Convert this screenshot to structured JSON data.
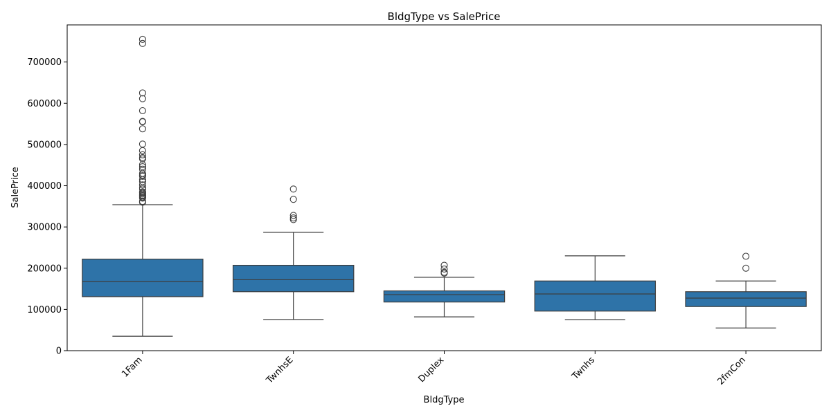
{
  "chart_data": {
    "type": "box",
    "title": "BldgType vs SalePrice",
    "xlabel": "BldgType",
    "ylabel": "SalePrice",
    "ylim": [
      0,
      790000
    ],
    "yticks": [
      0,
      100000,
      200000,
      300000,
      400000,
      500000,
      600000,
      700000
    ],
    "ytick_labels": [
      "0",
      "100000",
      "200000",
      "300000",
      "400000",
      "500000",
      "600000",
      "700000"
    ],
    "categories": [
      "1Fam",
      "TwnhsE",
      "Duplex",
      "Twnhs",
      "2fmCon"
    ],
    "grid": false,
    "box_color": "#2e73a8",
    "line_color": "#3d3d3d",
    "boxes": [
      {
        "category": "1Fam",
        "whisker_low": 35000,
        "q1": 131000,
        "median": 168000,
        "q3": 222000,
        "whisker_high": 354000,
        "outliers": [
          755000,
          745000,
          625000,
          611000,
          582000,
          556000,
          555000,
          538000,
          501000,
          485000,
          475000,
          468000,
          465000,
          451000,
          446000,
          440000,
          430000,
          426000,
          423000,
          415000,
          410000,
          402000,
          395000,
          392000,
          385000,
          383000,
          380000,
          377000,
          375000,
          372000,
          370000,
          362000,
          360000
        ]
      },
      {
        "category": "TwnhsE",
        "whisker_low": 75500,
        "q1": 143000,
        "median": 172000,
        "q3": 207000,
        "whisker_high": 287000,
        "outliers": [
          392000,
          367000,
          328000,
          322000,
          318000
        ]
      },
      {
        "category": "Duplex",
        "whisker_low": 82000,
        "q1": 118000,
        "median": 136000,
        "q3": 145000,
        "whisker_high": 178000,
        "outliers": [
          207000,
          198000,
          190000,
          188000
        ]
      },
      {
        "category": "Twnhs",
        "whisker_low": 75000,
        "q1": 96000,
        "median": 137500,
        "q3": 169000,
        "whisker_high": 230000,
        "outliers": []
      },
      {
        "category": "2fmCon",
        "whisker_low": 55000,
        "q1": 107000,
        "median": 127500,
        "q3": 143000,
        "whisker_high": 169000,
        "outliers": [
          228950,
          200000
        ]
      }
    ]
  }
}
